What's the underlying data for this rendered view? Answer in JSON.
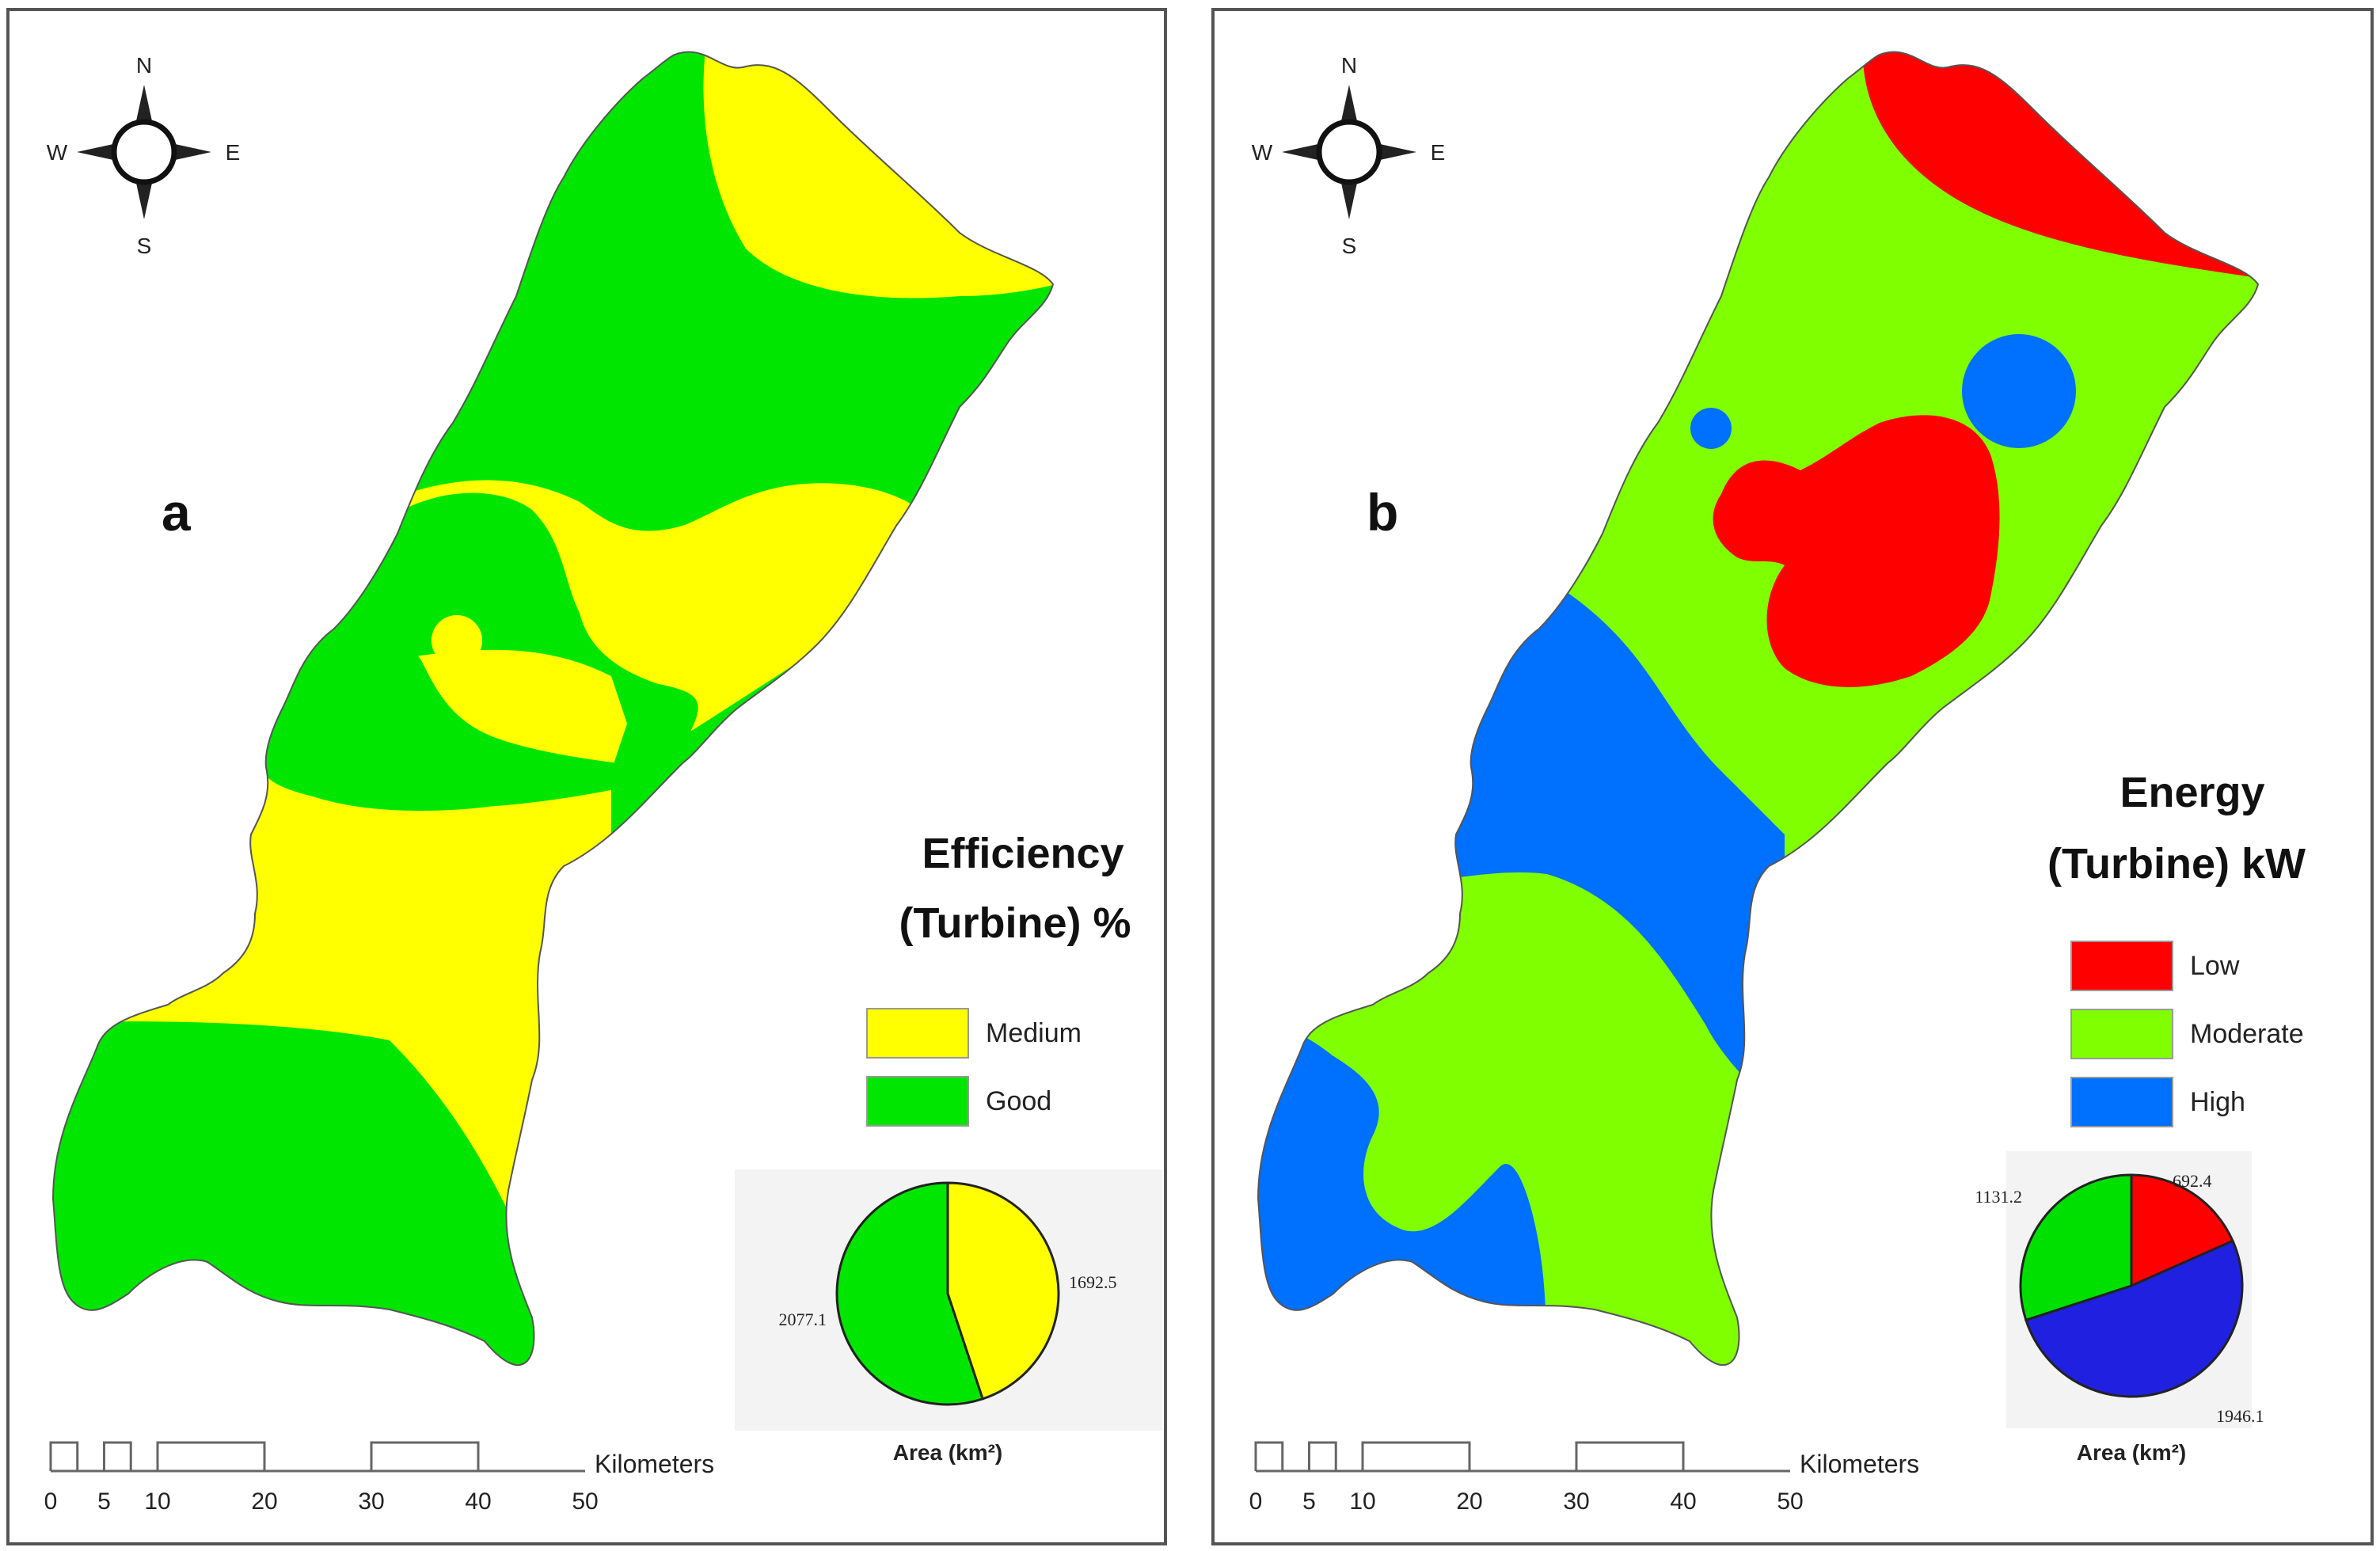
{
  "panel_a": {
    "letter": "a",
    "compass": {
      "n": "N",
      "s": "S",
      "e": "E",
      "w": "W"
    },
    "legend_title_line1": "Efficiency",
    "legend_title_line2": "(Turbine) %",
    "classes": [
      {
        "label": "Medium",
        "color": "#ffff00"
      },
      {
        "label": "Good",
        "color": "#00e600"
      }
    ],
    "pie": {
      "caption": "Area (km²)",
      "slices": [
        {
          "class": "Medium",
          "value": 1692.5,
          "label": "1692.5",
          "color": "#ffff00"
        },
        {
          "class": "Good",
          "value": 2077.1,
          "label": "2077.1",
          "color": "#00e600"
        }
      ]
    },
    "scale": {
      "unit": "Kilometers",
      "ticks": [
        "0",
        "5",
        "10",
        "20",
        "30",
        "40",
        "50"
      ]
    }
  },
  "panel_b": {
    "letter": "b",
    "compass": {
      "n": "N",
      "s": "S",
      "e": "E",
      "w": "W"
    },
    "legend_title_line1": "Energy",
    "legend_title_line2": "(Turbine) kW",
    "classes": [
      {
        "label": "Low",
        "color": "#ff0000"
      },
      {
        "label": "Moderate",
        "color": "#80ff00"
      },
      {
        "label": "High",
        "color": "#0070ff"
      }
    ],
    "pie": {
      "caption": "Area (km²)",
      "slices": [
        {
          "class": "Low",
          "value": 692.4,
          "label": "692.4",
          "color": "#ff0000"
        },
        {
          "class": "High",
          "value": 1946.1,
          "label": "1946.1",
          "color": "#2020e0"
        },
        {
          "class": "Moderate",
          "value": 1131.2,
          "label": "1131.2",
          "color": "#00e000"
        }
      ]
    },
    "scale": {
      "unit": "Kilometers",
      "ticks": [
        "0",
        "5",
        "10",
        "20",
        "30",
        "40",
        "50"
      ]
    }
  }
}
